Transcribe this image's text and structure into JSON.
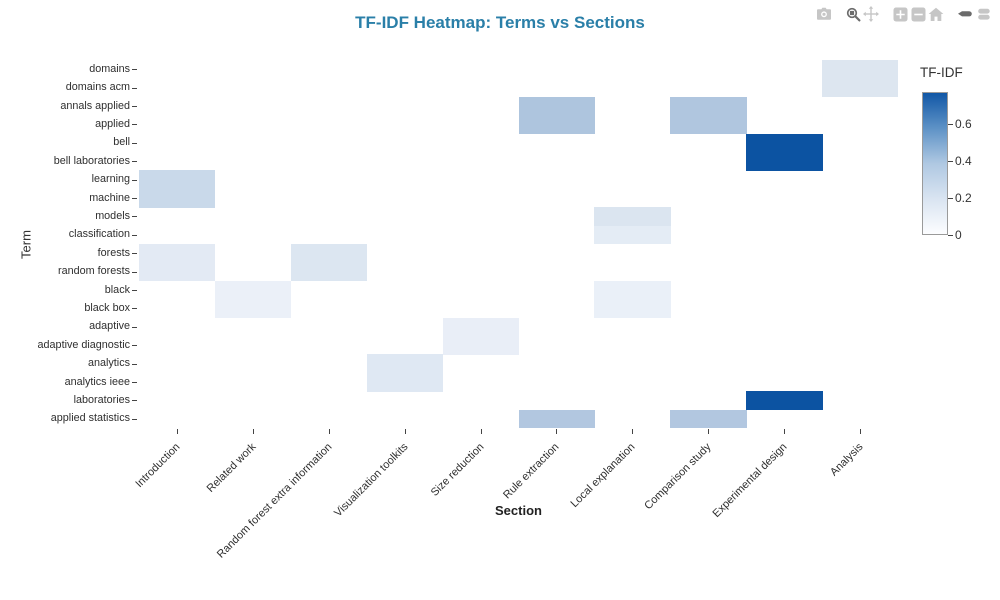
{
  "title": "TF-IDF Heatmap: Terms vs Sections",
  "title_color": "#2a7fa8",
  "modebar": {
    "icons": [
      {
        "name": "camera-icon",
        "active": false
      },
      {
        "name": "zoom-icon",
        "active": true
      },
      {
        "name": "pan-icon",
        "active": false
      },
      {
        "name": "zoom-in-icon",
        "active": false
      },
      {
        "name": "zoom-out-icon",
        "active": false
      },
      {
        "name": "autoscale-home-icon",
        "active": false
      },
      {
        "name": "hover-closest-icon",
        "active": true
      },
      {
        "name": "hover-compare-icon",
        "active": false
      }
    ]
  },
  "chart_data": {
    "type": "heatmap",
    "title": "TF-IDF Heatmap: Terms vs Sections",
    "xlabel": "Section",
    "ylabel": "Term",
    "legend_position": "right-colorbar",
    "grid": false,
    "x_categories": [
      "Introduction",
      "Related work",
      "Random forest extra information",
      "Visualization toolkits",
      "Size reduction",
      "Rule extraction",
      "Local explanation",
      "Comparison study",
      "Experimental design",
      "Analysis"
    ],
    "y_categories": [
      "domains",
      "domains acm",
      "annals applied",
      "applied",
      "bell",
      "bell laboratories",
      "learning",
      "machine",
      "models",
      "classification",
      "forests",
      "random forests",
      "black",
      "black box",
      "adaptive",
      "adaptive diagnostic",
      "analytics",
      "analytics ieee",
      "laboratories",
      "applied statistics"
    ],
    "colorbar": {
      "title": "TF-IDF",
      "ticks": [
        0,
        0.2,
        0.4,
        0.6
      ],
      "range_min": 0,
      "range_max": 0.77
    },
    "colorscale": [
      {
        "pos": 0.0,
        "color": "#fcfdff"
      },
      {
        "pos": 0.25,
        "color": "#d9e4f1"
      },
      {
        "pos": 0.5,
        "color": "#afc8e2"
      },
      {
        "pos": 0.75,
        "color": "#5e92c6"
      },
      {
        "pos": 1.0,
        "color": "#1157a6"
      }
    ],
    "cells": [
      {
        "term": "domains",
        "section": "Analysis",
        "value": 0.15,
        "color": "#dde6f0"
      },
      {
        "term": "domains acm",
        "section": "Analysis",
        "value": 0.15,
        "color": "#dde6f0"
      },
      {
        "term": "annals applied",
        "section": "Rule extraction",
        "value": 0.34,
        "color": "#aec5de"
      },
      {
        "term": "annals applied",
        "section": "Comparison study",
        "value": 0.33,
        "color": "#b0c6df"
      },
      {
        "term": "applied",
        "section": "Rule extraction",
        "value": 0.34,
        "color": "#aec5de"
      },
      {
        "term": "applied",
        "section": "Comparison study",
        "value": 0.33,
        "color": "#b0c6df"
      },
      {
        "term": "bell",
        "section": "Experimental design",
        "value": 0.73,
        "color": "#0c53a2"
      },
      {
        "term": "bell laboratories",
        "section": "Experimental design",
        "value": 0.73,
        "color": "#0c53a2"
      },
      {
        "term": "learning",
        "section": "Introduction",
        "value": 0.23,
        "color": "#c9d9ea"
      },
      {
        "term": "machine",
        "section": "Introduction",
        "value": 0.23,
        "color": "#c9d9ea"
      },
      {
        "term": "models",
        "section": "Local explanation",
        "value": 0.16,
        "color": "#dbe5f0"
      },
      {
        "term": "classification",
        "section": "Local explanation",
        "value": 0.11,
        "color": "#e4ecf5"
      },
      {
        "term": "forests",
        "section": "Introduction",
        "value": 0.12,
        "color": "#e3eaf4"
      },
      {
        "term": "forests",
        "section": "Random forest extra information",
        "value": 0.15,
        "color": "#dce6f1"
      },
      {
        "term": "random forests",
        "section": "Introduction",
        "value": 0.12,
        "color": "#e3eaf4"
      },
      {
        "term": "random forests",
        "section": "Random forest extra information",
        "value": 0.15,
        "color": "#dce6f1"
      },
      {
        "term": "black",
        "section": "Related work",
        "value": 0.08,
        "color": "#ebf0f8"
      },
      {
        "term": "black",
        "section": "Local explanation",
        "value": 0.08,
        "color": "#eaf0f8"
      },
      {
        "term": "black box",
        "section": "Related work",
        "value": 0.08,
        "color": "#ebf0f8"
      },
      {
        "term": "black box",
        "section": "Local explanation",
        "value": 0.08,
        "color": "#eaf0f8"
      },
      {
        "term": "adaptive",
        "section": "Size reduction",
        "value": 0.09,
        "color": "#e9eef7"
      },
      {
        "term": "adaptive diagnostic",
        "section": "Size reduction",
        "value": 0.09,
        "color": "#e9eef7"
      },
      {
        "term": "analytics",
        "section": "Visualization toolkits",
        "value": 0.13,
        "color": "#dfe8f3"
      },
      {
        "term": "analytics ieee",
        "section": "Visualization toolkits",
        "value": 0.13,
        "color": "#dfe8f3"
      },
      {
        "term": "laboratories",
        "section": "Experimental design",
        "value": 0.73,
        "color": "#0c53a2"
      },
      {
        "term": "applied statistics",
        "section": "Rule extraction",
        "value": 0.32,
        "color": "#b2c7e0"
      },
      {
        "term": "applied statistics",
        "section": "Comparison study",
        "value": 0.32,
        "color": "#b2c7e0"
      }
    ]
  }
}
